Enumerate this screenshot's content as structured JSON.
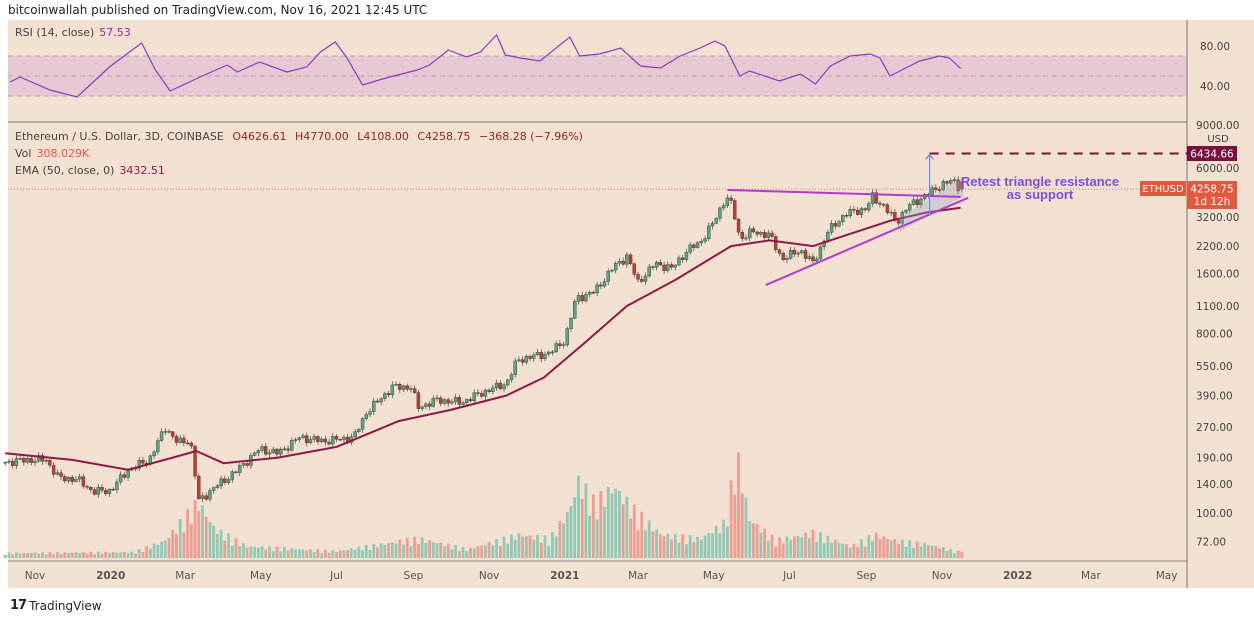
{
  "header": {
    "published": "bitcoinwallah published on TradingView.com, Nov 16, 2021 12:45 UTC"
  },
  "rsi_legend": {
    "label": "RSI (14, close)",
    "value": "57.53"
  },
  "legend": {
    "symbol": "Ethereum / U.S. Dollar, 3D, COINBASE",
    "open": "O4626.61",
    "high": "H4770.00",
    "low": "L4108.00",
    "close": "C4258.75",
    "change": "−368.28 (−7.96%)",
    "vol_label": "Vol",
    "vol_value": "308.029K",
    "ema_label": "EMA (50, close, 0)",
    "ema_value": "3432.51"
  },
  "annotation": {
    "line1": "Retest triangle resistance",
    "line2": "as support"
  },
  "price_axis": {
    "currency": "USD",
    "ticker_label": "ETHUSD",
    "last_price": "4258.75",
    "countdown": "1d 12h",
    "target_label": "6434.66"
  },
  "footer": {
    "logo_text": "TradingView",
    "logo_mark": "17"
  },
  "colors": {
    "background": "#f2e1d0",
    "up": "#5aa383",
    "down": "#c43d2c",
    "vol_up": "#8fcab6",
    "vol_down": "#ef9c92",
    "ema": "#8b1a4a",
    "rsi": "#9038c0",
    "rsi_band": "#e6c8d3",
    "trendline": "#b23ad0",
    "target": "#7a1040",
    "arrow": "#6f8cf0",
    "annotation": "#7d4fd8"
  },
  "chart_data": [
    {
      "type": "candlestick",
      "title": "Ethereum / U.S. Dollar, 3D, COINBASE",
      "y_scale": "log",
      "y_ticks": [
        9000,
        6000,
        3200,
        2200,
        1600,
        1100,
        800,
        550,
        390,
        270,
        190,
        140,
        100,
        72
      ],
      "x_ticks": [
        {
          "date": "2019-11-01",
          "label": "Nov"
        },
        {
          "date": "2020-01-01",
          "label": "2020"
        },
        {
          "date": "2020-03-01",
          "label": "Mar"
        },
        {
          "date": "2020-05-01",
          "label": "May"
        },
        {
          "date": "2020-07-01",
          "label": "Jul"
        },
        {
          "date": "2020-09-01",
          "label": "Sep"
        },
        {
          "date": "2020-11-01",
          "label": "Nov"
        },
        {
          "date": "2021-01-01",
          "label": "2021"
        },
        {
          "date": "2021-03-01",
          "label": "Mar"
        },
        {
          "date": "2021-05-01",
          "label": "May"
        },
        {
          "date": "2021-07-01",
          "label": "Jul"
        },
        {
          "date": "2021-09-01",
          "label": "Sep"
        },
        {
          "date": "2021-11-01",
          "label": "Nov"
        },
        {
          "date": "2022-01-01",
          "label": "2022"
        },
        {
          "date": "2022-03-01",
          "label": "Mar"
        },
        {
          "date": "2022-05-01",
          "label": "May"
        }
      ],
      "close_path": [
        [
          "2019-10-08",
          180
        ],
        [
          "2019-10-25",
          185
        ],
        [
          "2019-11-10",
          185
        ],
        [
          "2019-11-20",
          150
        ],
        [
          "2019-12-05",
          148
        ],
        [
          "2019-12-18",
          128
        ],
        [
          "2020-01-01",
          130
        ],
        [
          "2020-01-15",
          165
        ],
        [
          "2020-02-01",
          185
        ],
        [
          "2020-02-14",
          270
        ],
        [
          "2020-02-24",
          225
        ],
        [
          "2020-03-05",
          235
        ],
        [
          "2020-03-12",
          115
        ],
        [
          "2020-03-25",
          135
        ],
        [
          "2020-04-10",
          160
        ],
        [
          "2020-04-30",
          210
        ],
        [
          "2020-05-15",
          200
        ],
        [
          "2020-06-01",
          240
        ],
        [
          "2020-06-20",
          230
        ],
        [
          "2020-07-15",
          240
        ],
        [
          "2020-07-25",
          320
        ],
        [
          "2020-08-15",
          430
        ],
        [
          "2020-08-30",
          430
        ],
        [
          "2020-09-05",
          340
        ],
        [
          "2020-09-20",
          370
        ],
        [
          "2020-10-10",
          360
        ],
        [
          "2020-10-25",
          400
        ],
        [
          "2020-11-15",
          450
        ],
        [
          "2020-11-24",
          590
        ],
        [
          "2020-12-20",
          640
        ],
        [
          "2021-01-01",
          740
        ],
        [
          "2021-01-10",
          1200
        ],
        [
          "2021-01-25",
          1300
        ],
        [
          "2021-02-10",
          1750
        ],
        [
          "2021-02-20",
          1950
        ],
        [
          "2021-03-01",
          1450
        ],
        [
          "2021-03-15",
          1800
        ],
        [
          "2021-03-28",
          1700
        ],
        [
          "2021-04-10",
          2100
        ],
        [
          "2021-04-20",
          2300
        ],
        [
          "2021-05-01",
          2900
        ],
        [
          "2021-05-11",
          3900
        ],
        [
          "2021-05-16",
          3500
        ],
        [
          "2021-05-22",
          2400
        ],
        [
          "2021-06-01",
          2600
        ],
        [
          "2021-06-15",
          2500
        ],
        [
          "2021-06-25",
          1900
        ],
        [
          "2021-07-10",
          2100
        ],
        [
          "2021-07-20",
          1800
        ],
        [
          "2021-08-01",
          2600
        ],
        [
          "2021-08-15",
          3200
        ],
        [
          "2021-09-01",
          3400
        ],
        [
          "2021-09-06",
          3900
        ],
        [
          "2021-09-15",
          3500
        ],
        [
          "2021-09-25",
          2900
        ],
        [
          "2021-10-05",
          3500
        ],
        [
          "2021-10-20",
          4000
        ],
        [
          "2021-11-01",
          4500
        ],
        [
          "2021-11-10",
          4700
        ],
        [
          "2021-11-16",
          4258.75
        ]
      ],
      "last": {
        "open": 4626.61,
        "high": 4770.0,
        "low": 4108.0,
        "close": 4258.75
      },
      "ema_50": [
        [
          "2019-10-08",
          200
        ],
        [
          "2019-12-01",
          185
        ],
        [
          "2020-01-15",
          165
        ],
        [
          "2020-02-20",
          190
        ],
        [
          "2020-03-10",
          205
        ],
        [
          "2020-04-01",
          178
        ],
        [
          "2020-05-15",
          190
        ],
        [
          "2020-07-01",
          215
        ],
        [
          "2020-08-20",
          290
        ],
        [
          "2020-10-01",
          330
        ],
        [
          "2020-11-15",
          390
        ],
        [
          "2020-12-15",
          480
        ],
        [
          "2021-01-15",
          700
        ],
        [
          "2021-02-20",
          1100
        ],
        [
          "2021-04-01",
          1500
        ],
        [
          "2021-05-15",
          2200
        ],
        [
          "2021-06-15",
          2350
        ],
        [
          "2021-07-20",
          2200
        ],
        [
          "2021-08-20",
          2550
        ],
        [
          "2021-09-20",
          2950
        ],
        [
          "2021-10-20",
          3250
        ],
        [
          "2021-11-16",
          3432.51
        ]
      ],
      "volume_k": [
        [
          "2019-10-08",
          250
        ],
        [
          "2020-01-20",
          300
        ],
        [
          "2020-02-14",
          900
        ],
        [
          "2020-03-12",
          2900
        ],
        [
          "2020-03-25",
          1500
        ],
        [
          "2020-04-20",
          600
        ],
        [
          "2020-07-01",
          350
        ],
        [
          "2020-08-15",
          800
        ],
        [
          "2020-09-05",
          1000
        ],
        [
          "2020-10-15",
          450
        ],
        [
          "2020-11-25",
          1200
        ],
        [
          "2020-12-20",
          1000
        ],
        [
          "2021-01-05",
          2500
        ],
        [
          "2021-01-12",
          4000
        ],
        [
          "2021-01-25",
          2800
        ],
        [
          "2021-02-10",
          3700
        ],
        [
          "2021-02-25",
          2500
        ],
        [
          "2021-03-20",
          1200
        ],
        [
          "2021-04-20",
          1000
        ],
        [
          "2021-05-10",
          1800
        ],
        [
          "2021-05-20",
          5250
        ],
        [
          "2021-05-30",
          2000
        ],
        [
          "2021-06-20",
          900
        ],
        [
          "2021-07-20",
          1300
        ],
        [
          "2021-08-20",
          600
        ],
        [
          "2021-09-08",
          1200
        ],
        [
          "2021-09-25",
          900
        ],
        [
          "2021-10-20",
          700
        ],
        [
          "2021-11-16",
          308.029
        ]
      ],
      "drawings": {
        "triangle_upper": [
          [
            "2021-05-12",
            4217
          ],
          [
            "2021-11-16",
            3890
          ]
        ],
        "triangle_lower": [
          [
            "2021-06-12",
            1402
          ],
          [
            "2021-11-22",
            3850
          ]
        ],
        "channel_lower": [
          [
            "2021-09-28",
            2600
          ],
          [
            "2021-11-18",
            3900
          ]
        ],
        "channel_upper": [
          [
            "2021-09-28",
            3050
          ],
          [
            "2021-11-18",
            4900
          ]
        ],
        "target_arrow": [
          [
            "2021-10-22",
            3160
          ],
          [
            "2021-10-22",
            6434.66
          ]
        ],
        "target_level": 6434.66
      }
    },
    {
      "type": "line",
      "title": "RSI (14, close)",
      "y_ticks": [
        80,
        40
      ],
      "band": [
        30,
        70
      ],
      "midline": 50,
      "points": [
        [
          "2019-10-12",
          44
        ],
        [
          "2019-10-20",
          49
        ],
        [
          "2019-11-13",
          36
        ],
        [
          "2019-12-05",
          29
        ],
        [
          "2019-12-31",
          59
        ],
        [
          "2020-01-26",
          83
        ],
        [
          "2020-02-06",
          56
        ],
        [
          "2020-02-18",
          35
        ],
        [
          "2020-03-13",
          49
        ],
        [
          "2020-04-04",
          61
        ],
        [
          "2020-04-12",
          54
        ],
        [
          "2020-04-30",
          64
        ],
        [
          "2020-05-22",
          54
        ],
        [
          "2020-06-07",
          59
        ],
        [
          "2020-06-18",
          74
        ],
        [
          "2020-06-30",
          84
        ],
        [
          "2020-07-09",
          69
        ],
        [
          "2020-07-22",
          41
        ],
        [
          "2020-08-07",
          47
        ],
        [
          "2020-09-04",
          56
        ],
        [
          "2020-09-14",
          61
        ],
        [
          "2020-09-29",
          76
        ],
        [
          "2020-10-14",
          69
        ],
        [
          "2020-10-25",
          74
        ],
        [
          "2020-11-07",
          91
        ],
        [
          "2020-11-14",
          71
        ],
        [
          "2020-11-26",
          68
        ],
        [
          "2020-12-12",
          65
        ],
        [
          "2021-01-05",
          89
        ],
        [
          "2021-01-13",
          70
        ],
        [
          "2021-01-29",
          72
        ],
        [
          "2021-02-15",
          78
        ],
        [
          "2021-03-03",
          60
        ],
        [
          "2021-03-19",
          58
        ],
        [
          "2021-04-04",
          70
        ],
        [
          "2021-04-20",
          78
        ],
        [
          "2021-05-02",
          85
        ],
        [
          "2021-05-10",
          80
        ],
        [
          "2021-05-22",
          50
        ],
        [
          "2021-05-30",
          55
        ],
        [
          "2021-06-23",
          45
        ],
        [
          "2021-07-10",
          52
        ],
        [
          "2021-07-22",
          42
        ],
        [
          "2021-08-03",
          60
        ],
        [
          "2021-08-19",
          70
        ],
        [
          "2021-09-04",
          72
        ],
        [
          "2021-09-12",
          68
        ],
        [
          "2021-09-20",
          50
        ],
        [
          "2021-09-28",
          55
        ],
        [
          "2021-10-14",
          65
        ],
        [
          "2021-10-30",
          70
        ],
        [
          "2021-11-07",
          68
        ],
        [
          "2021-11-16",
          57.53
        ]
      ]
    }
  ]
}
